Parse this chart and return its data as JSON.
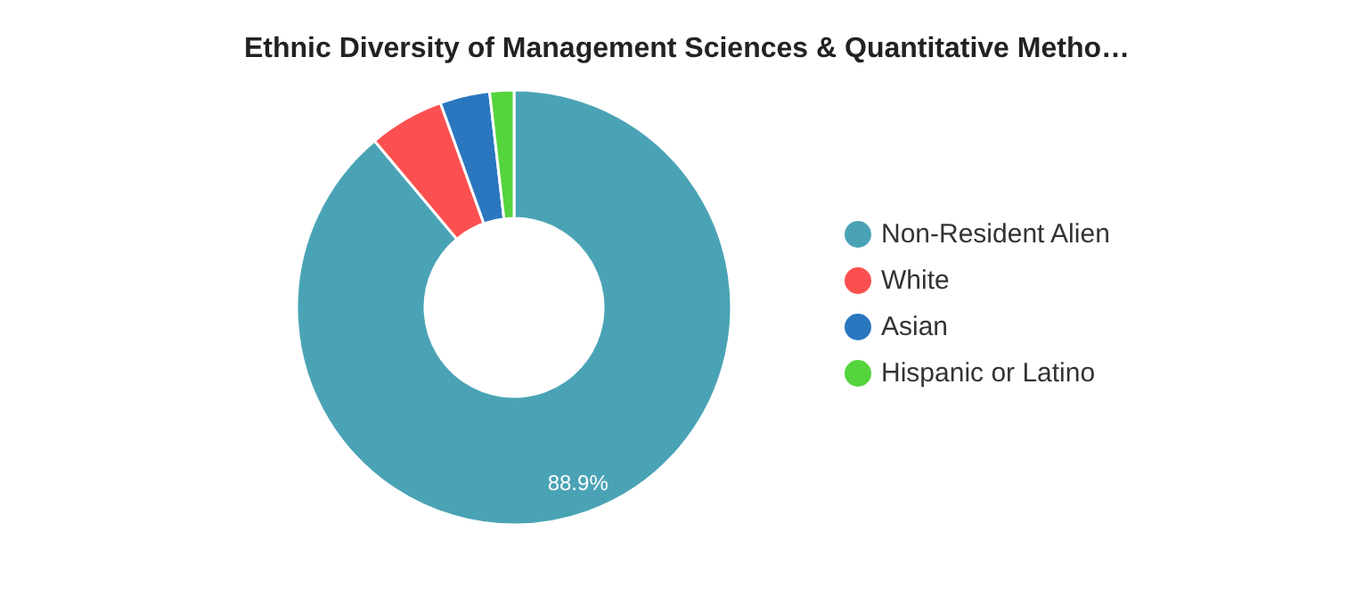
{
  "chart_data": {
    "type": "donut",
    "title": "Ethnic Diversity of Management Sciences & Quantitative Metho…",
    "categories": [
      "Non-Resident Alien",
      "White",
      "Asian",
      "Hispanic or Latino"
    ],
    "values": [
      88.9,
      5.6,
      3.7,
      1.8
    ],
    "colors": [
      "#4aa3b5",
      "#fc5050",
      "#2a77c0",
      "#55d43d"
    ],
    "value_labels": [
      "88.9%",
      null,
      null,
      null
    ],
    "legend": "right"
  }
}
